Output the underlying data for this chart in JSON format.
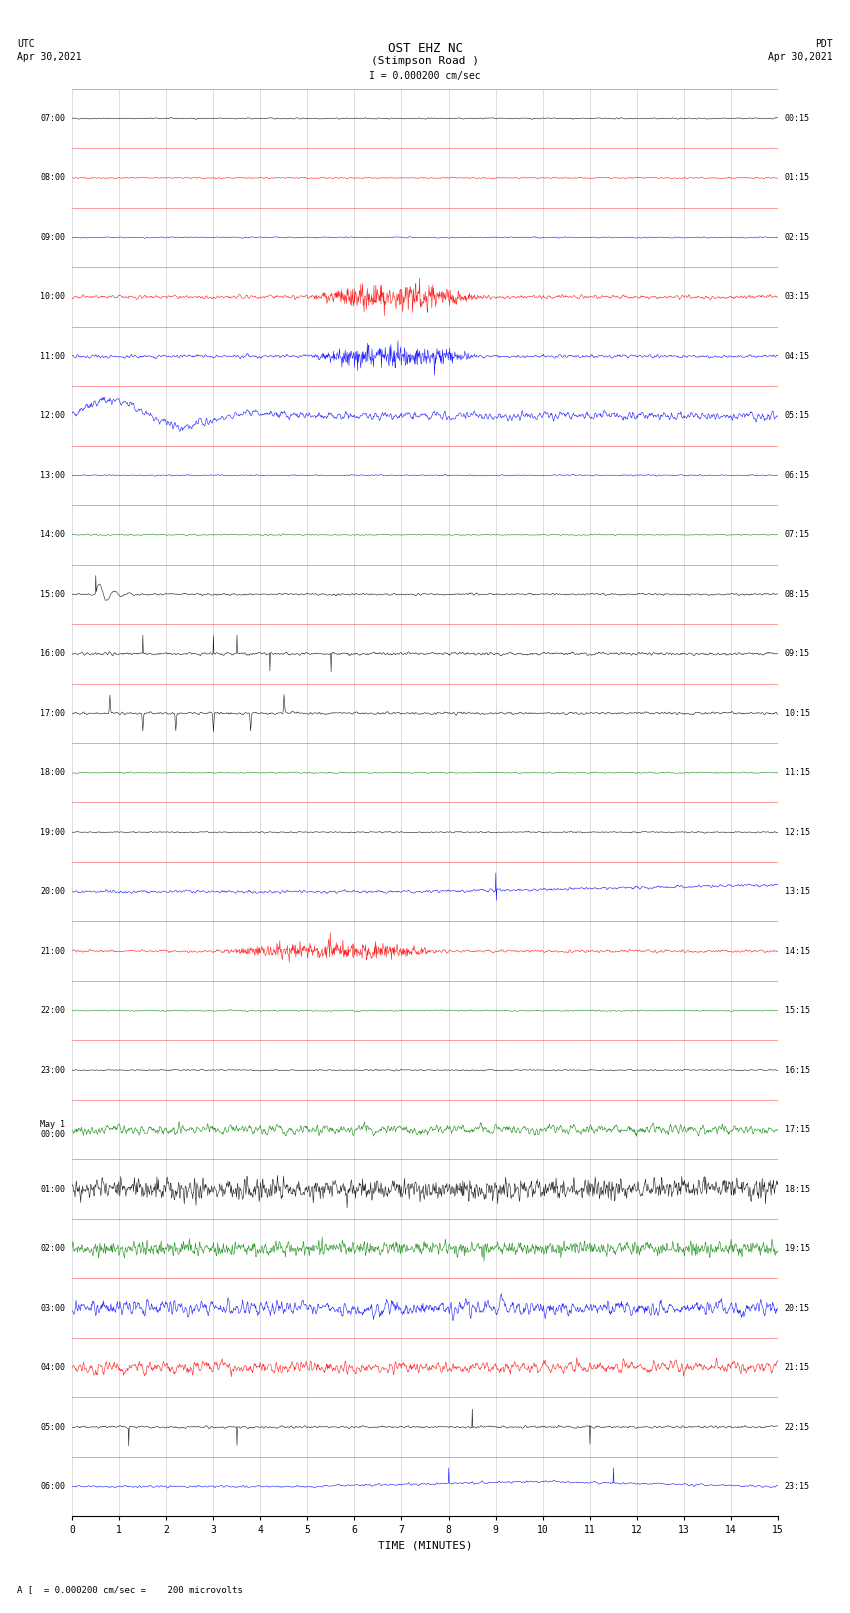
{
  "title_line1": "OST EHZ NC",
  "title_line2": "(Stimpson Road )",
  "scale_text": "I = 0.000200 cm/sec",
  "footer_text": "A [  = 0.000200 cm/sec =    200 microvolts",
  "utc_label": "UTC",
  "utc_date": "Apr 30,2021",
  "pdt_label": "PDT",
  "pdt_date": "Apr 30,2021",
  "xlabel": "TIME (MINUTES)",
  "xlim": [
    0,
    15
  ],
  "xticks": [
    0,
    1,
    2,
    3,
    4,
    5,
    6,
    7,
    8,
    9,
    10,
    11,
    12,
    13,
    14,
    15
  ],
  "bg_color": "#ffffff",
  "grid_color": "#aaaaaa",
  "trace_colors_cycle": [
    "#000000",
    "#ff0000",
    "#0000ff",
    "#008000"
  ],
  "seed": 42,
  "fig_width": 8.5,
  "fig_height": 16.13,
  "dpi": 100
}
